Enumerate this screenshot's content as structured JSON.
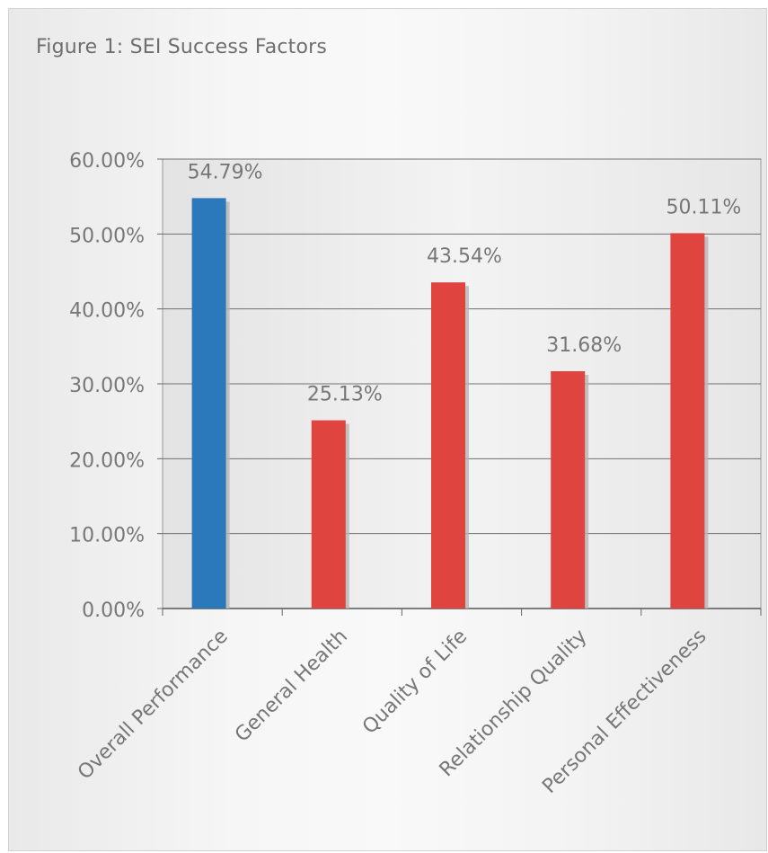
{
  "chart_data": {
    "type": "bar",
    "title": "Figure 1: SEI Success Factors",
    "xlabel": "",
    "ylabel": "",
    "categories": [
      "Overall Performance",
      "General Health",
      "Quality of Life",
      "Relationship Quality",
      "Personal Effectiveness"
    ],
    "values": [
      54.79,
      25.13,
      43.54,
      31.68,
      50.11
    ],
    "value_labels": [
      "54.79%",
      "25.13%",
      "43.54%",
      "31.68%",
      "50.11%"
    ],
    "ylim": [
      0,
      60
    ],
    "yticks": [
      0,
      10,
      20,
      30,
      40,
      50,
      60
    ],
    "ytick_labels": [
      "0.00%",
      "10.00%",
      "20.00%",
      "30.00%",
      "40.00%",
      "50.00%",
      "60.00%"
    ],
    "grid": true,
    "legend": "none",
    "bar_colors": [
      "#2b78ba",
      "#e0443e",
      "#e0443e",
      "#e0443e",
      "#e0443e"
    ]
  }
}
